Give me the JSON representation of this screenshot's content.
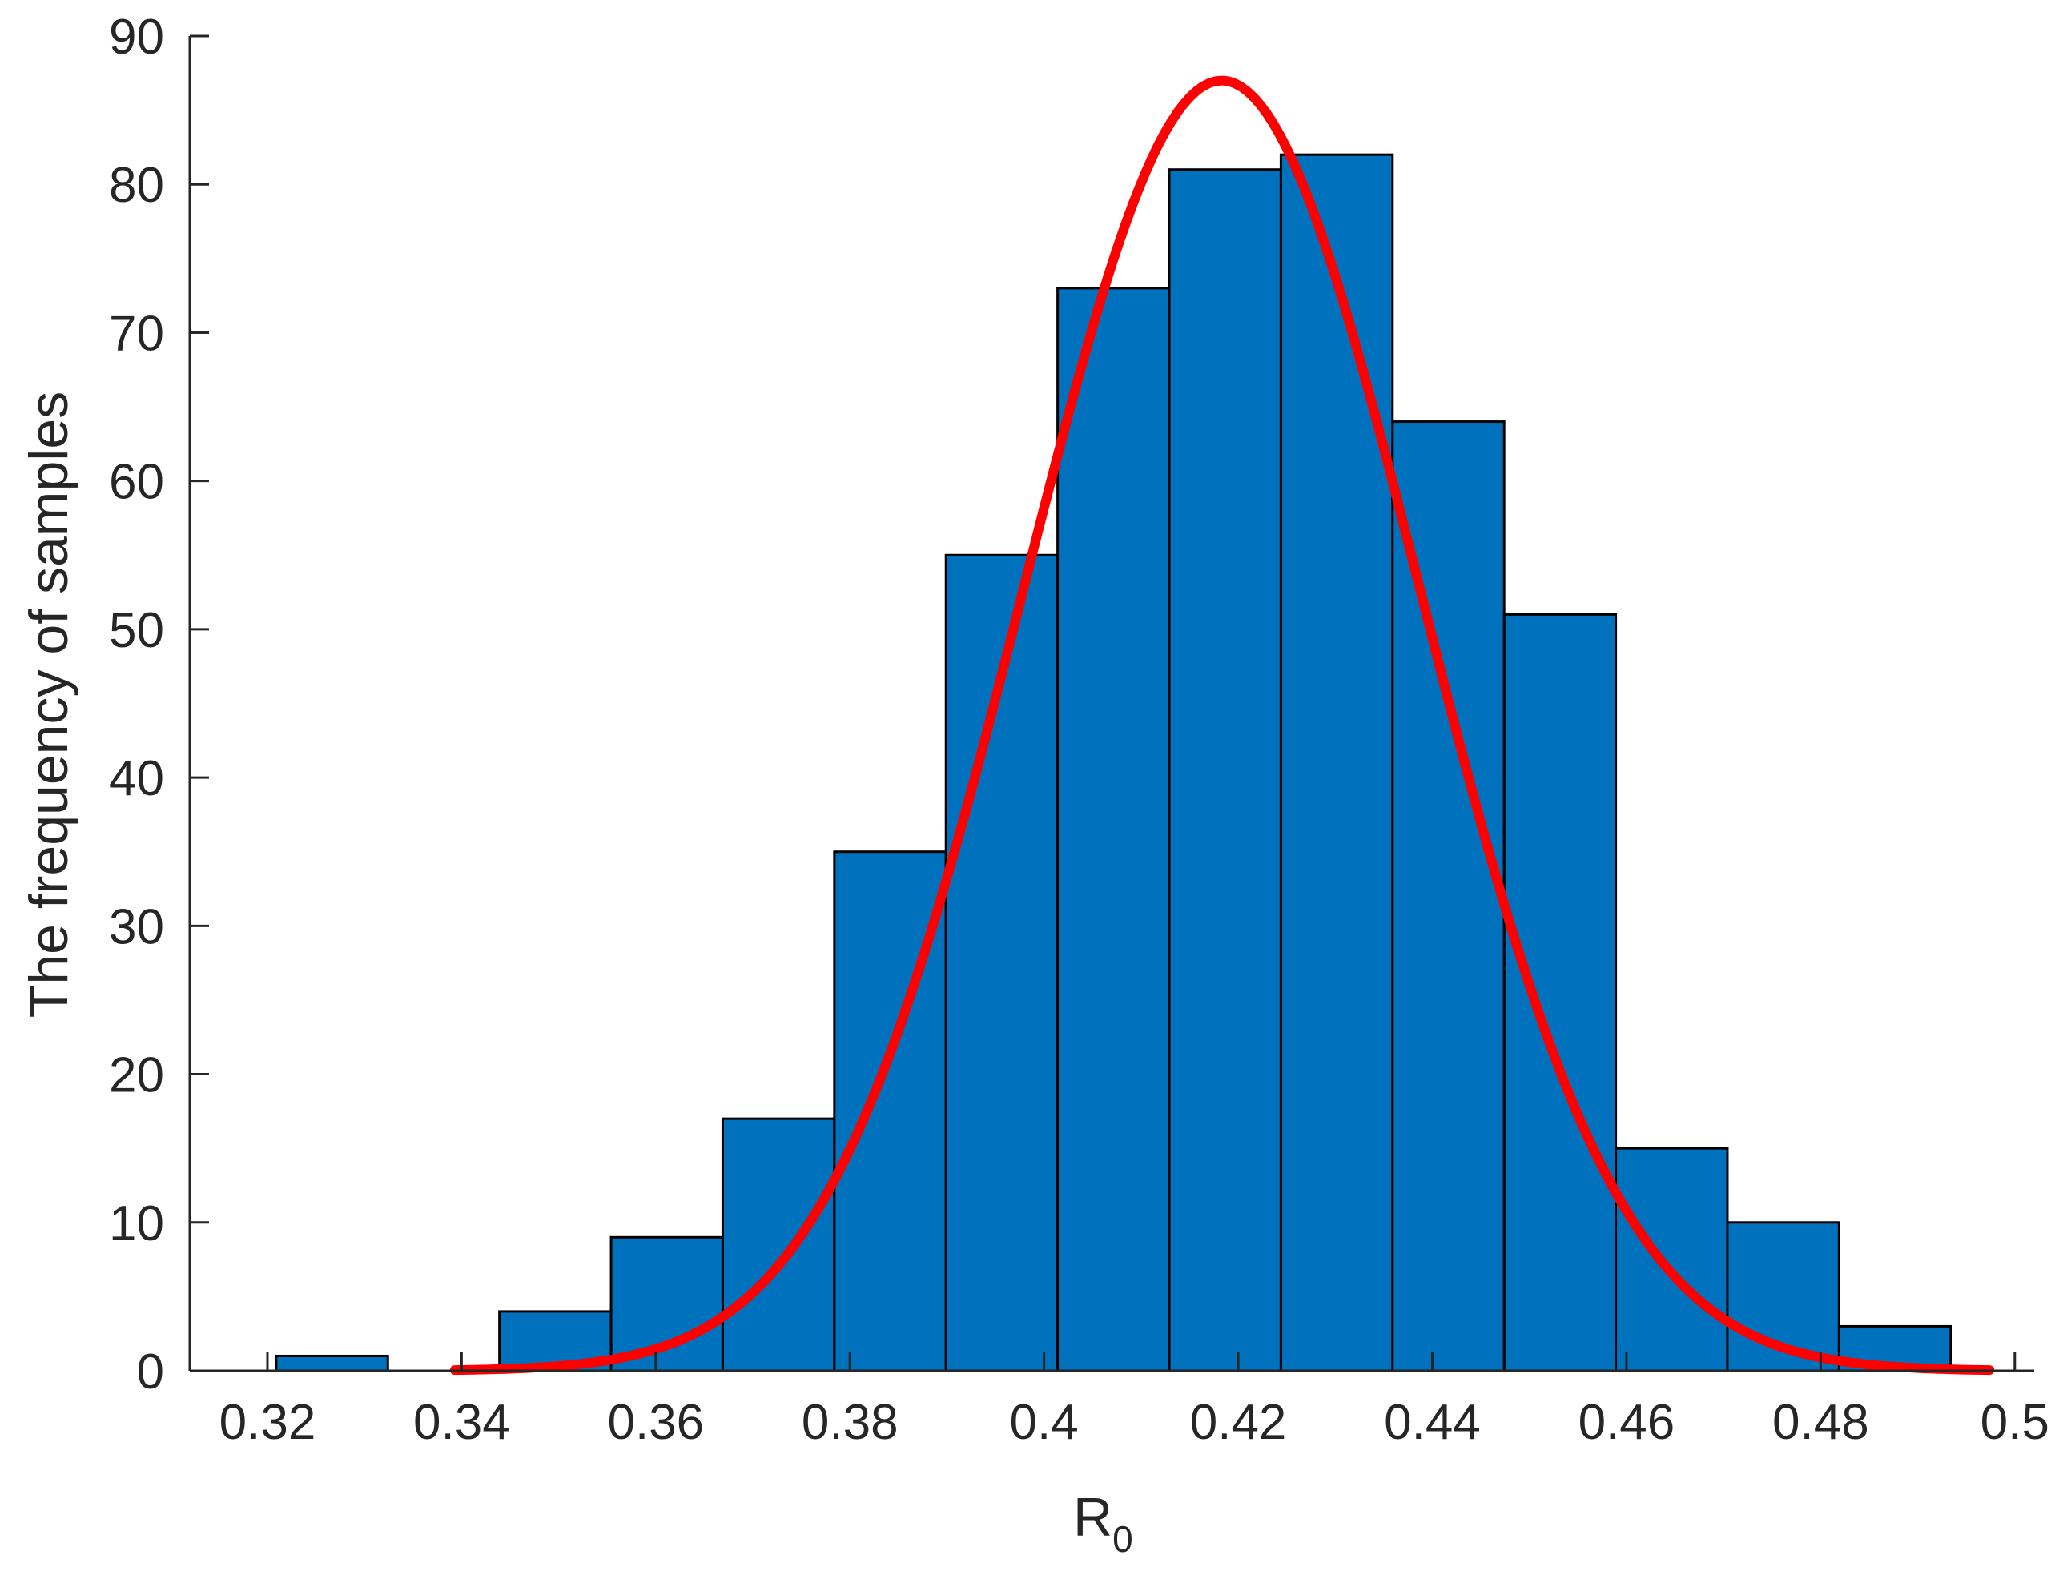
{
  "chart_data": {
    "type": "bar",
    "subtype": "histogram-with-normal-fit",
    "xlabel": "R",
    "xlabel_subscript": "0",
    "ylabel": "The frequency of samples",
    "xlim": [
      0.312,
      0.502
    ],
    "ylim": [
      0,
      90
    ],
    "xticks": [
      0.32,
      0.34,
      0.36,
      0.38,
      0.4,
      0.42,
      0.44,
      0.46,
      0.48,
      0.5
    ],
    "xtick_labels": [
      "0.32",
      "0.34",
      "0.36",
      "0.38",
      "0.4",
      "0.42",
      "0.44",
      "0.46",
      "0.48",
      "0.5"
    ],
    "yticks": [
      0,
      10,
      20,
      30,
      40,
      50,
      60,
      70,
      80,
      90
    ],
    "ytick_labels": [
      "0",
      "10",
      "20",
      "30",
      "40",
      "50",
      "60",
      "70",
      "80",
      "90"
    ],
    "bin_edges": [
      0.3209,
      0.3324,
      0.3439,
      0.3554,
      0.3669,
      0.3784,
      0.3899,
      0.4014,
      0.4129,
      0.4244,
      0.4359,
      0.4474,
      0.4589,
      0.4704,
      0.4819,
      0.4934
    ],
    "counts": [
      1,
      0,
      4,
      9,
      17,
      35,
      55,
      73,
      81,
      82,
      64,
      51,
      15,
      10,
      3
    ],
    "fit_curve": {
      "type": "normal",
      "mean": 0.4183,
      "sd": 0.0204,
      "peak": 87,
      "x_range": [
        0.3393,
        0.4974
      ]
    },
    "grid": false,
    "legend": "none",
    "colors": {
      "bar_fill": "#0072BD",
      "bar_edge": "#000000",
      "curve": "#FF0000",
      "axis": "#262626"
    }
  }
}
